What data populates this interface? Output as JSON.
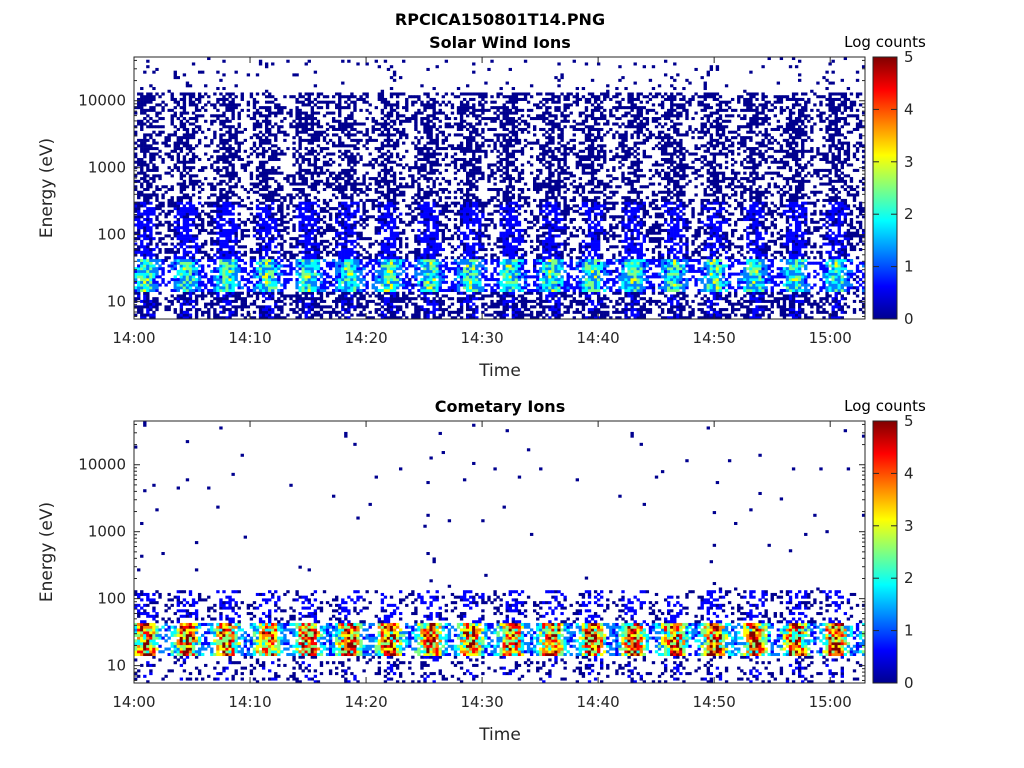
{
  "figure": {
    "filename_title": "RPCICA150801T14.PNG"
  },
  "colormap": [
    "#00008f",
    "#0000ff",
    "#0080ff",
    "#00ffff",
    "#80ff80",
    "#ffff00",
    "#ff8000",
    "#ff0000",
    "#800000"
  ],
  "chart_data": [
    {
      "type": "heatmap",
      "title": "Solar Wind Ions",
      "xlabel": "Time",
      "ylabel": "Energy (eV)",
      "x_range": [
        "14:00",
        "15:03"
      ],
      "x_ticks": [
        "14:00",
        "14:10",
        "14:20",
        "14:30",
        "14:40",
        "14:50",
        "15:00"
      ],
      "y_scale": "log",
      "y_range": [
        5.5,
        45000
      ],
      "y_ticks": [
        "10",
        "100",
        "1000",
        "10000"
      ],
      "colorbar": {
        "label": "Log counts",
        "range": [
          0,
          5
        ],
        "ticks": [
          "0",
          "1",
          "2",
          "3",
          "4",
          "5"
        ]
      },
      "bands": [
        {
          "e_min": 5.5,
          "e_max": 14,
          "log_counts_level": 0.2,
          "coverage": 0.55
        },
        {
          "e_min": 14,
          "e_max": 45,
          "log_counts_level": 1.3,
          "coverage": 0.75
        },
        {
          "e_min": 45,
          "e_max": 300,
          "log_counts_level": 0.3,
          "coverage": 0.55
        },
        {
          "e_min": 300,
          "e_max": 13000,
          "log_counts_level": 0.1,
          "coverage": 0.45
        },
        {
          "e_min": 13000,
          "e_max": 45000,
          "log_counts_level": 0.05,
          "coverage": 0.04
        }
      ]
    },
    {
      "type": "heatmap",
      "title": "Cometary Ions",
      "xlabel": "Time",
      "ylabel": "Energy (eV)",
      "x_range": [
        "14:00",
        "15:03"
      ],
      "x_ticks": [
        "14:00",
        "14:10",
        "14:20",
        "14:30",
        "14:40",
        "14:50",
        "15:00"
      ],
      "y_scale": "log",
      "y_range": [
        5.5,
        45000
      ],
      "y_ticks": [
        "10",
        "100",
        "1000",
        "10000"
      ],
      "colorbar": {
        "label": "Log counts",
        "range": [
          0,
          5
        ],
        "ticks": [
          "0",
          "1",
          "2",
          "3",
          "4",
          "5"
        ]
      },
      "bands": [
        {
          "e_min": 5.5,
          "e_max": 14,
          "log_counts_level": 0.2,
          "coverage": 0.2
        },
        {
          "e_min": 14,
          "e_max": 45,
          "log_counts_level": 2.5,
          "coverage": 0.8
        },
        {
          "e_min": 45,
          "e_max": 130,
          "log_counts_level": 0.3,
          "coverage": 0.3
        },
        {
          "e_min": 130,
          "e_max": 45000,
          "log_counts_level": 0.05,
          "coverage": 0.006
        }
      ]
    }
  ]
}
